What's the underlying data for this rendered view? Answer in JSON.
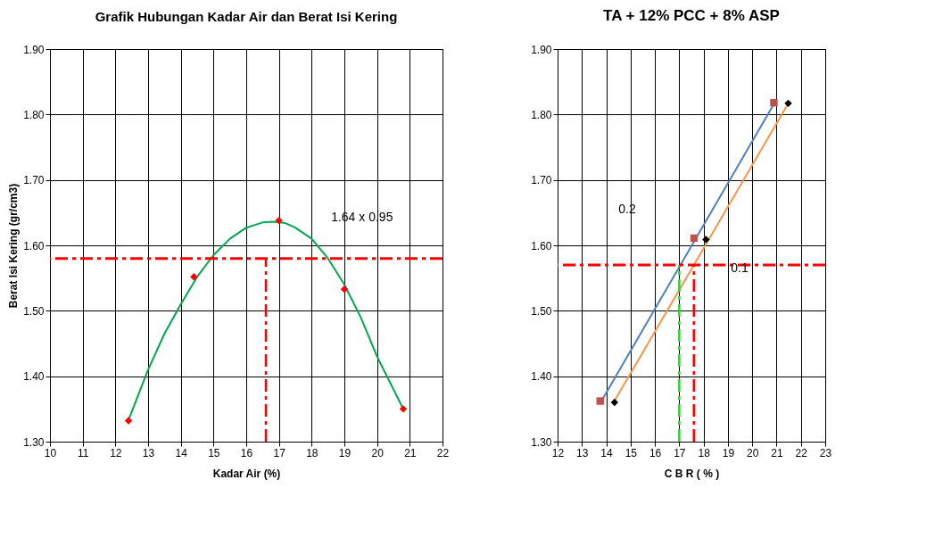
{
  "chart_data": [
    {
      "type": "scatter",
      "title": "Grafik Hubungan Kadar Air dan  Berat Isi Kering",
      "xlabel": "Kadar Air (%)",
      "ylabel": "Berat Isi Kering (gr/cm3)",
      "xlim": [
        10,
        22
      ],
      "xticks": [
        10,
        11,
        12,
        13,
        14,
        15,
        16,
        17,
        18,
        19,
        20,
        21,
        22
      ],
      "ylim": [
        1.3,
        1.9
      ],
      "yticks": [
        {
          "value": 1.3,
          "label": "1.30"
        },
        {
          "value": 1.4,
          "label": "1.40"
        },
        {
          "value": 1.5,
          "label": "1.50"
        },
        {
          "value": 1.6,
          "label": "1.60"
        },
        {
          "value": 1.7,
          "label": "1.70"
        },
        {
          "value": 1.8,
          "label": "1.80"
        },
        {
          "value": 1.9,
          "label": "1.90"
        }
      ],
      "grid": true,
      "series": [
        {
          "type": "line",
          "color": "#00a84f",
          "marker": "none",
          "line_style": "solid",
          "x": [
            12.4,
            13,
            13.5,
            14,
            14.5,
            15,
            15.5,
            16,
            16.5,
            16.8,
            17.2,
            17.5,
            18,
            18.5,
            19,
            19.5,
            20,
            20.4,
            20.8
          ],
          "values": [
            1.333,
            1.41,
            1.465,
            1.51,
            1.552,
            1.585,
            1.61,
            1.627,
            1.635,
            1.636,
            1.634,
            1.627,
            1.61,
            1.58,
            1.54,
            1.49,
            1.43,
            1.39,
            1.35
          ]
        },
        {
          "color": "#ff0000",
          "marker": "diamond",
          "x": [
            12.4,
            14.4,
            17.0,
            19.0,
            20.8
          ],
          "values": [
            1.332,
            1.552,
            1.638,
            1.533,
            1.35
          ]
        },
        {
          "type": "line",
          "color": "#ff0000",
          "marker": "none",
          "line_style": "dashed",
          "x": [
            16.6,
            16.6
          ],
          "values": [
            1.3,
            1.58
          ]
        }
      ],
      "ref_lines": [
        {
          "axis": "y",
          "value": 1.58,
          "color": "#ff0000",
          "line_style": "dashed"
        }
      ],
      "annotations": [
        "1.64 x 0.95"
      ]
    },
    {
      "type": "scatter",
      "title": "TA + 12% PCC + 8% ASP",
      "xlabel": "C B R ( % )",
      "xlim": [
        12,
        23
      ],
      "xticks": [
        12,
        13,
        14,
        15,
        16,
        17,
        18,
        19,
        20,
        21,
        22,
        23
      ],
      "ylim": [
        1.3,
        1.9
      ],
      "yticks": [
        {
          "value": 1.3,
          "label": "1.30"
        },
        {
          "value": 1.4,
          "label": "1.40"
        },
        {
          "value": 1.5,
          "label": "1.50"
        },
        {
          "value": 1.6,
          "label": "1.60"
        },
        {
          "value": 1.7,
          "label": "1.70"
        },
        {
          "value": 1.8,
          "label": "1.80"
        },
        {
          "value": 1.9,
          "label": "1.90"
        }
      ],
      "grid": true,
      "series": [
        {
          "type": "line",
          "color": "#4f81bd",
          "marker": "none",
          "line_style": "solid",
          "x": [
            13.85,
            20.95
          ],
          "values": [
            1.365,
            1.82
          ]
        },
        {
          "type": "line",
          "color": "#f79646",
          "marker": "none",
          "line_style": "solid",
          "x": [
            14.3,
            21.45
          ],
          "values": [
            1.36,
            1.815
          ]
        },
        {
          "color": "#c0504d",
          "marker": "square",
          "x": [
            13.75,
            17.61,
            20.89
          ],
          "values": [
            1.362,
            1.611,
            1.818
          ]
        },
        {
          "color": "#000000",
          "marker": "diamond",
          "x": [
            14.34,
            18.1,
            21.48
          ],
          "values": [
            1.36,
            1.609,
            1.817
          ]
        },
        {
          "type": "line",
          "color": "#ff0000",
          "marker": "none",
          "line_style": "dashed",
          "x": [
            17.6,
            17.6
          ],
          "values": [
            1.3,
            1.57
          ]
        },
        {
          "type": "line",
          "color": "#33cc33",
          "marker": "none",
          "line_style": "dashed",
          "x": [
            17.0,
            17.0
          ],
          "values": [
            1.3,
            1.57
          ]
        }
      ],
      "ref_lines": [
        {
          "axis": "y",
          "value": 1.57,
          "color": "#ff0000",
          "line_style": "dashed"
        }
      ],
      "annotations": [
        "0.2",
        "0.1"
      ]
    }
  ]
}
